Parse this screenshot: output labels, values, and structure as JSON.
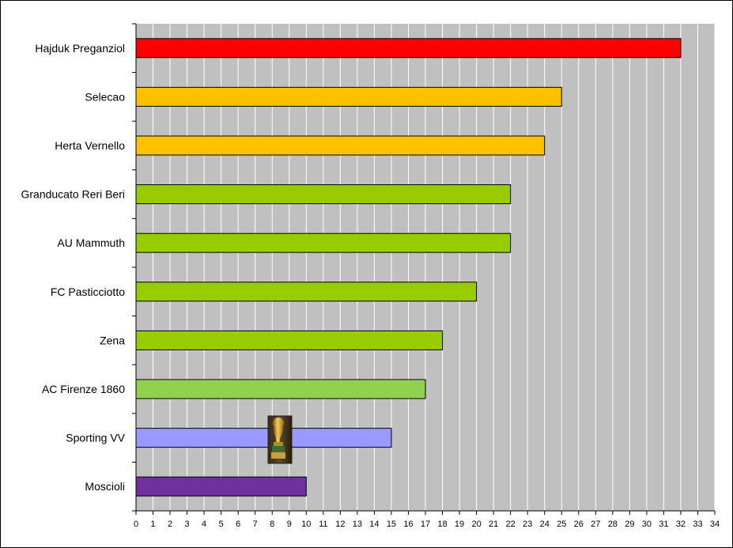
{
  "chart_data": {
    "type": "bar",
    "orientation": "horizontal",
    "title": "",
    "xlabel": "",
    "ylabel": "",
    "categories": [
      "Hajduk Preganziol",
      "Selecao",
      "Herta Vernello",
      "Granducato Reri Beri",
      "AU Mammuth",
      "FC Pasticciotto",
      "Zena",
      "AC Firenze 1860",
      "Sporting VV",
      "Moscioli"
    ],
    "values": [
      32,
      25,
      24,
      22,
      22,
      20,
      18,
      17,
      15,
      10
    ],
    "bar_colors": [
      "#ff0000",
      "#ffc000",
      "#ffc000",
      "#99cc00",
      "#99cc00",
      "#99cc00",
      "#99cc00",
      "#92d050",
      "#9999ff",
      "#7030a0"
    ],
    "xlim": [
      0,
      34
    ],
    "x_ticks": [
      0,
      1,
      2,
      3,
      4,
      5,
      6,
      7,
      8,
      9,
      10,
      11,
      12,
      13,
      14,
      15,
      16,
      17,
      18,
      19,
      20,
      21,
      22,
      23,
      24,
      25,
      26,
      27,
      28,
      29,
      30,
      31,
      32,
      33,
      34
    ],
    "grid": "vertical",
    "plot_background": "#c0c0c0",
    "gridline_color": "#ffffff",
    "legend": "none",
    "annotation_icon": "world-cup-trophy-icon"
  }
}
